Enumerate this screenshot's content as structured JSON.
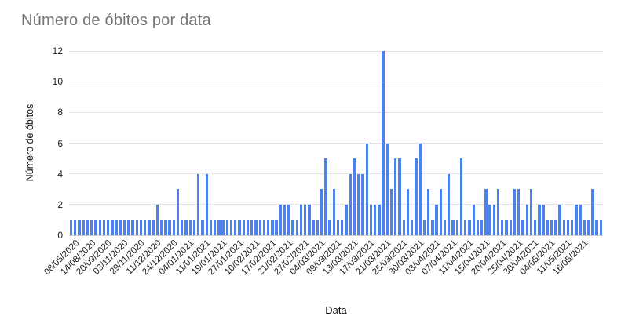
{
  "title": "Número de óbitos por data",
  "colors": {
    "bar": "#4e81ea",
    "title_text": "#757575",
    "tick_text": "#202124",
    "gridline": "#e3e3e3",
    "baseline": "#cfcfcf",
    "background": "#ffffff"
  },
  "chart_data": {
    "type": "bar",
    "title": "Número de óbitos por data",
    "xlabel": "Data",
    "ylabel": "Número de óbitos",
    "ylim": [
      0,
      12
    ],
    "yticks": [
      0,
      2,
      4,
      6,
      8,
      10,
      12
    ],
    "grid": "horizontal",
    "legend": "none",
    "label_every_n_bars": 4,
    "x_tick_labels": [
      "08/05/2020",
      "14/08/2020",
      "20/09/2020",
      "03/11/2020",
      "29/11/2020",
      "11/12/2020",
      "24/12/2020",
      "04/01/2021",
      "11/01/2021",
      "19/01/2021",
      "27/01/2021",
      "10/02/2021",
      "17/02/2021",
      "21/02/2021",
      "27/02/2021",
      "04/03/2021",
      "09/03/2021",
      "13/03/2021",
      "17/03/2021",
      "21/03/2021",
      "25/03/2021",
      "30/03/2021",
      "03/04/2021",
      "07/04/2021",
      "11/04/2021",
      "15/04/2021",
      "20/04/2021",
      "25/04/2021",
      "30/04/2021",
      "04/05/2021",
      "11/05/2021",
      "16/05/2021"
    ],
    "values": [
      1,
      1,
      1,
      1,
      1,
      1,
      1,
      1,
      1,
      1,
      1,
      1,
      1,
      1,
      1,
      1,
      1,
      1,
      1,
      1,
      1,
      2,
      1,
      1,
      1,
      1,
      3,
      1,
      1,
      1,
      1,
      4,
      1,
      4,
      1,
      1,
      1,
      1,
      1,
      1,
      1,
      1,
      1,
      1,
      1,
      1,
      1,
      1,
      1,
      1,
      1,
      2,
      2,
      2,
      1,
      1,
      2,
      2,
      2,
      1,
      1,
      3,
      5,
      1,
      3,
      1,
      1,
      2,
      4,
      5,
      4,
      4,
      6,
      2,
      2,
      2,
      12,
      6,
      3,
      5,
      5,
      1,
      3,
      1,
      5,
      6,
      1,
      3,
      1,
      2,
      3,
      1,
      4,
      1,
      1,
      5,
      1,
      1,
      2,
      1,
      1,
      3,
      2,
      2,
      3,
      1,
      1,
      1,
      3,
      3,
      1,
      2,
      3,
      1,
      2,
      2,
      1,
      1,
      1,
      2,
      1,
      1,
      1,
      2,
      2,
      1,
      1,
      3,
      1,
      1
    ]
  }
}
